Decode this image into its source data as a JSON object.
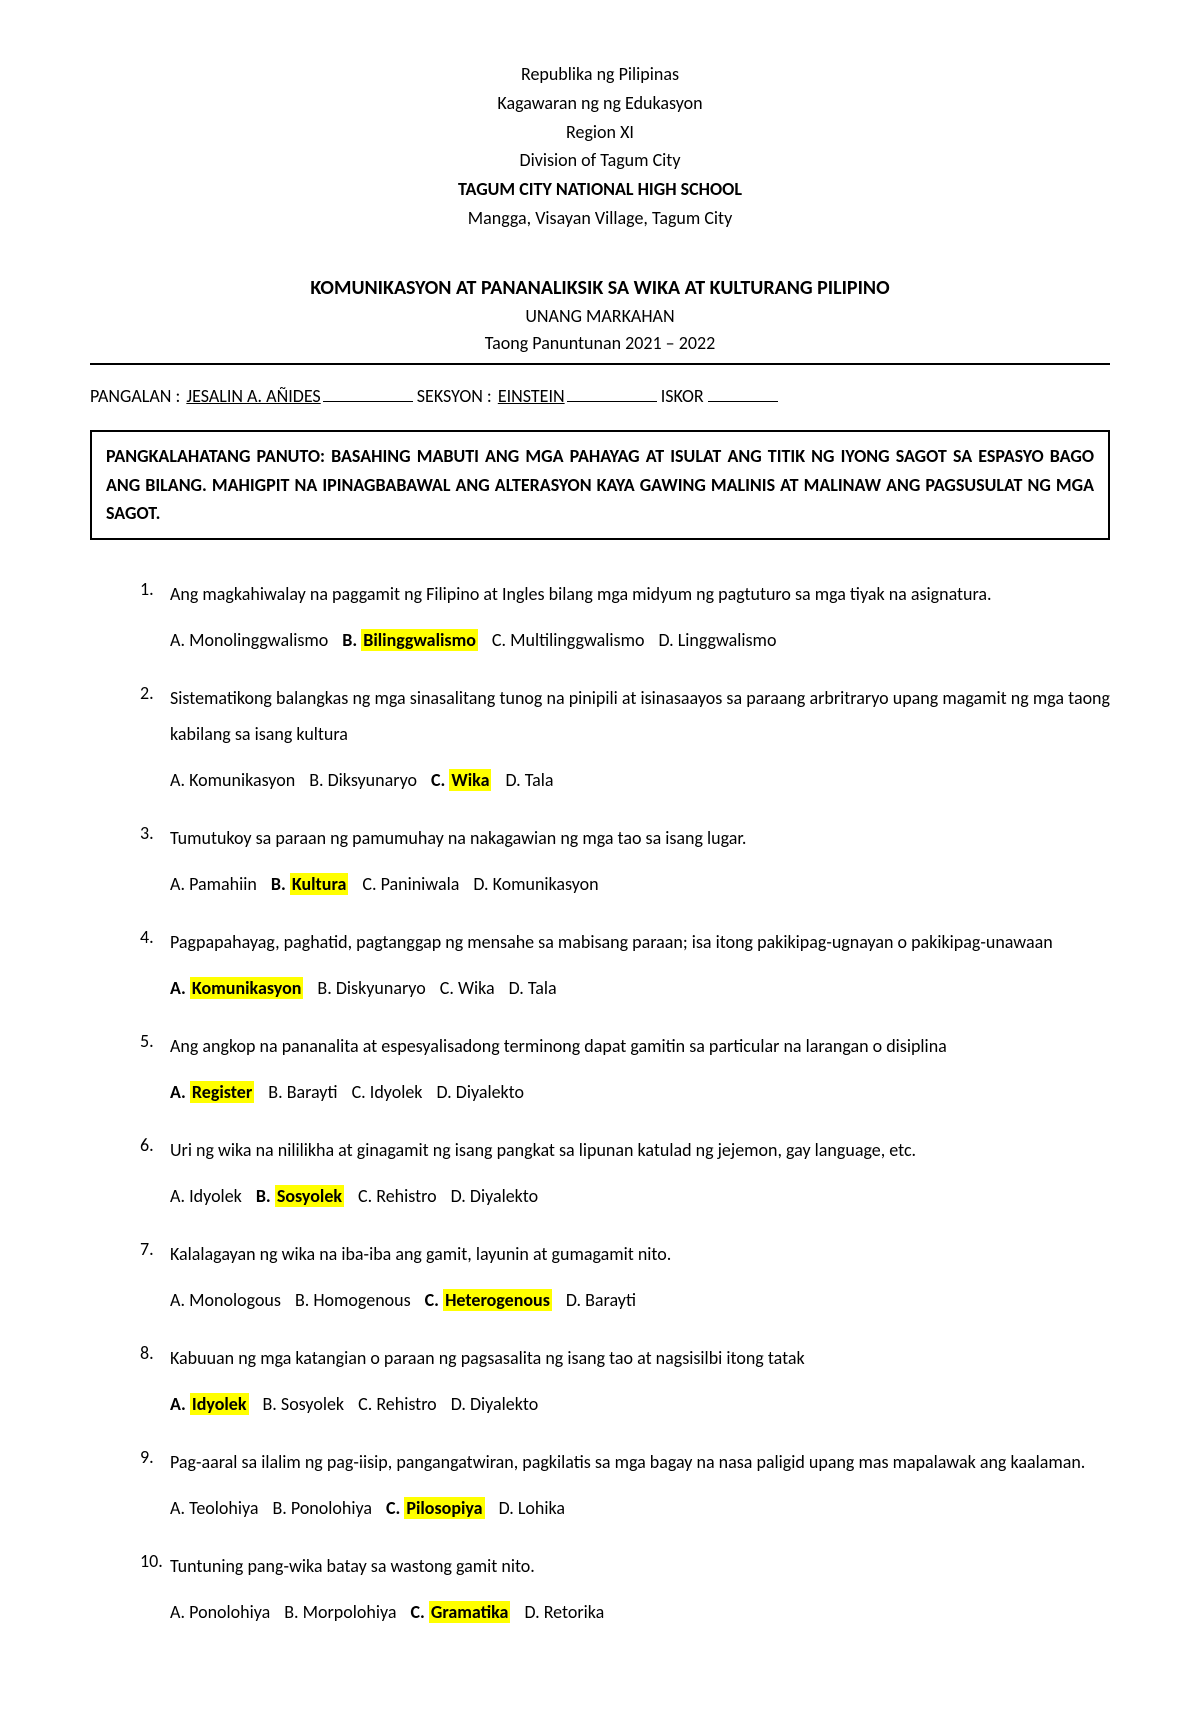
{
  "header": {
    "line1": "Republika ng Pilipinas",
    "line2": "Kagawaran ng ng Edukasyon",
    "line3": "Region XI",
    "line4": "Division of Tagum City",
    "line5": "TAGUM CITY NATIONAL HIGH SCHOOL",
    "line6": "Mangga, Visayan Village, Tagum City"
  },
  "title": {
    "main": "KOMUNIKASYON AT PANANALIKSIK SA WIKA AT KULTURANG PILIPINO",
    "sub1": "UNANG MARKAHAN",
    "sub2": "Taong Panuntunan 2021 – 2022"
  },
  "info": {
    "name_label": "PANGALAN : ",
    "name_value": "JESALIN A. AÑIDES",
    "section_label": "SEKSYON : ",
    "section_value": "EINSTEIN",
    "score_label": "ISKOR "
  },
  "panuto": "PANGKALAHATANG PANUTO: BASAHING MABUTI ANG MGA PAHAYAG AT ISULAT ANG TITIK NG IYONG SAGOT SA ESPASYO BAGO ANG BILANG. MAHIGPIT NA IPINAGBABAWAL ANG ALTERASYON KAYA GAWING MALINIS AT MALINAW ANG PAGSUSULAT  NG MGA SAGOT.",
  "questions": [
    {
      "num": "1.",
      "text": "Ang magkahiwalay na paggamit ng Filipino at Ingles bilang mga midyum ng pagtuturo sa mga tiyak na asignatura.",
      "choices": [
        {
          "letter": "A.",
          "text": "Monolinggwalismo",
          "hl": false,
          "bold": false
        },
        {
          "letter": "B.",
          "text": "Bilinggwalismo",
          "hl": true,
          "bold": true
        },
        {
          "letter": "C.",
          "text": "Multilinggwalismo",
          "hl": false,
          "bold": false
        },
        {
          "letter": "D.",
          "text": "Linggwalismo",
          "hl": false,
          "bold": false
        }
      ]
    },
    {
      "num": "2.",
      "text": "Sistematikong balangkas ng mga sinasalitang tunog na pinipili at isinasaayos sa paraang arbritraryo upang magamit ng mga taong kabilang sa isang kultura",
      "choices": [
        {
          "letter": "A.",
          "text": "Komunikasyon",
          "hl": false,
          "bold": false
        },
        {
          "letter": "B.",
          "text": "Diksyunaryo",
          "hl": false,
          "bold": false
        },
        {
          "letter": "C.",
          "text": "Wika",
          "hl": true,
          "bold": true
        },
        {
          "letter": "D.",
          "text": "Tala",
          "hl": false,
          "bold": false
        }
      ]
    },
    {
      "num": "3.",
      "text": "Tumutukoy sa paraan ng pamumuhay na nakagawian ng mga tao sa isang lugar.",
      "choices": [
        {
          "letter": "A.",
          "text": "Pamahiin",
          "hl": false,
          "bold": false
        },
        {
          "letter": "B.",
          "text": "Kultura",
          "hl": true,
          "bold": true
        },
        {
          "letter": "C.",
          "text": "Paniniwala",
          "hl": false,
          "bold": false
        },
        {
          "letter": "D.",
          "text": "Komunikasyon",
          "hl": false,
          "bold": false
        }
      ]
    },
    {
      "num": "4.",
      "text": "Pagpapahayag, paghatid, pagtanggap ng mensahe sa mabisang paraan; isa itong pakikipag-ugnayan o pakikipag-unawaan",
      "choices": [
        {
          "letter": "A.",
          "text": "Komunikasyon",
          "hl": true,
          "bold": true
        },
        {
          "letter": "B.",
          "text": "Diskyunaryo",
          "hl": false,
          "bold": false
        },
        {
          "letter": "C.",
          "text": "Wika",
          "hl": false,
          "bold": false
        },
        {
          "letter": "D.",
          "text": "Tala",
          "hl": false,
          "bold": false
        }
      ]
    },
    {
      "num": "5.",
      "text": "Ang angkop na pananalita at espesyalisadong terminong dapat gamitin sa particular na larangan o disiplina",
      "choices": [
        {
          "letter": "A.",
          "text": "Register",
          "hl": true,
          "bold": true
        },
        {
          "letter": "B.",
          "text": "Barayti",
          "hl": false,
          "bold": false
        },
        {
          "letter": "C.",
          "text": "Idyolek",
          "hl": false,
          "bold": false
        },
        {
          "letter": "D.",
          "text": "Diyalekto",
          "hl": false,
          "bold": false
        }
      ]
    },
    {
      "num": "6.",
      "text": "Uri ng wika na nililikha at ginagamit ng isang pangkat sa lipunan katulad ng jejemon, gay language, etc.",
      "choices": [
        {
          "letter": "A.",
          "text": "Idyolek",
          "hl": false,
          "bold": false
        },
        {
          "letter": "B.",
          "text": "Sosyolek",
          "hl": true,
          "bold": true
        },
        {
          "letter": "C.",
          "text": "Rehistro",
          "hl": false,
          "bold": false
        },
        {
          "letter": "D.",
          "text": "Diyalekto",
          "hl": false,
          "bold": false
        }
      ]
    },
    {
      "num": "7.",
      "text": "Kalalagayan ng wika na iba-iba ang gamit, layunin at gumagamit nito.",
      "choices": [
        {
          "letter": "A.",
          "text": "Monologous",
          "hl": false,
          "bold": false
        },
        {
          "letter": "B.",
          "text": "Homogenous",
          "hl": false,
          "bold": false
        },
        {
          "letter": "C.",
          "text": "Heterogenous",
          "hl": true,
          "bold": true
        },
        {
          "letter": "D.",
          "text": "Barayti",
          "hl": false,
          "bold": false
        }
      ]
    },
    {
      "num": "8.",
      "text": "Kabuuan ng mga katangian o paraan ng pagsasalita ng isang tao at nagsisilbi itong tatak",
      "choices": [
        {
          "letter": "A.",
          "text": "Idyolek",
          "hl": true,
          "bold": true
        },
        {
          "letter": "B.",
          "text": "Sosyolek",
          "hl": false,
          "bold": false
        },
        {
          "letter": "C.",
          "text": "Rehistro",
          "hl": false,
          "bold": false
        },
        {
          "letter": "D.",
          "text": "Diyalekto",
          "hl": false,
          "bold": false
        }
      ]
    },
    {
      "num": "9.",
      "text": "Pag-aaral sa ilalim ng pag-iisip, pangangatwiran, pagkilatis sa mga bagay na nasa paligid upang mas mapalawak ang kaalaman.",
      "choices": [
        {
          "letter": "A.",
          "text": "Teolohiya",
          "hl": false,
          "bold": false
        },
        {
          "letter": "B.",
          "text": "Ponolohiya",
          "hl": false,
          "bold": false
        },
        {
          "letter": "C.",
          "text": "Pilosopiya",
          "hl": true,
          "bold": true
        },
        {
          "letter": "D.",
          "text": "Lohika",
          "hl": false,
          "bold": false
        }
      ]
    },
    {
      "num": "10.",
      "text": "Tuntuning pang-wika batay sa wastong gamit nito.",
      "choices": [
        {
          "letter": "A.",
          "text": "Ponolohiya",
          "hl": false,
          "bold": false
        },
        {
          "letter": "B.",
          "text": "Morpolohiya",
          "hl": false,
          "bold": false
        },
        {
          "letter": "C.",
          "text": "Gramatika",
          "hl": true,
          "bold": true
        },
        {
          "letter": "D.",
          "text": "Retorika",
          "hl": false,
          "bold": false
        }
      ]
    }
  ]
}
